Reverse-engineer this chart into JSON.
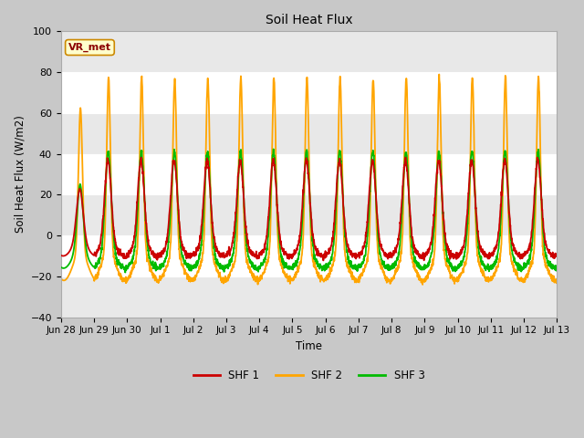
{
  "title": "Soil Heat Flux",
  "ylabel": "Soil Heat Flux (W/m2)",
  "xlabel": "Time",
  "ylim": [
    -40,
    100
  ],
  "yticks": [
    -40,
    -20,
    0,
    20,
    40,
    60,
    80,
    100
  ],
  "fig_bg_color": "#c8c8c8",
  "plot_bg_color": "#ffffff",
  "shf1_color": "#cc0000",
  "shf2_color": "#ffa500",
  "shf3_color": "#00bb00",
  "annotation_text": "VR_met",
  "annotation_bg": "#ffffcc",
  "annotation_border": "#cc8800",
  "legend_labels": [
    "SHF 1",
    "SHF 2",
    "SHF 3"
  ],
  "n_days": 15,
  "x_tick_labels": [
    "Jun 28",
    "Jun 29",
    "Jun 30",
    "Jul 1",
    "Jul 2",
    "Jul 3",
    "Jul 4",
    "Jul 5",
    "Jul 6",
    "Jul 7",
    "Jul 8",
    "Jul 9",
    "Jul 10",
    "Jul 11",
    "Jul 12",
    "Jul 13"
  ]
}
